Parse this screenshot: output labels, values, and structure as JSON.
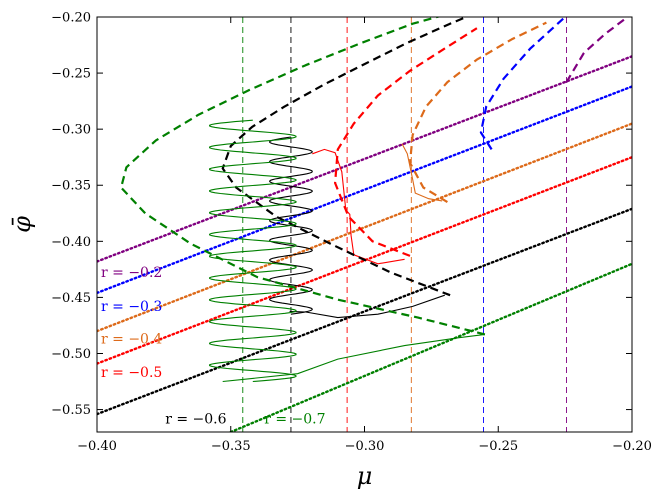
{
  "chart_data": {
    "type": "line",
    "title": "",
    "xlabel": "μ",
    "ylabel": "φ̄",
    "xlim": [
      -0.4,
      -0.2
    ],
    "ylim": [
      -0.57,
      -0.2
    ],
    "x_ticks": [
      -0.4,
      -0.35,
      -0.3,
      -0.25,
      -0.2
    ],
    "x_tick_labels": [
      "−0.40",
      "−0.35",
      "−0.30",
      "−0.25",
      "−0.20"
    ],
    "y_ticks": [
      -0.2,
      -0.25,
      -0.3,
      -0.35,
      -0.4,
      -0.45,
      -0.5,
      -0.55
    ],
    "y_tick_labels": [
      "−0.20",
      "−0.25",
      "−0.30",
      "−0.35",
      "−0.40",
      "−0.45",
      "−0.50",
      "−0.55"
    ],
    "grid": false,
    "series": [
      {
        "name": "r = −0.2",
        "color": "#800080",
        "dotted_line": [
          [
            -0.4,
            -0.418
          ],
          [
            -0.2,
            -0.235
          ]
        ],
        "vertical_line_x": -0.2245,
        "branch": [
          [
            -0.2245,
            -0.258
          ],
          [
            -0.218,
            -0.232
          ],
          [
            -0.21,
            -0.215
          ],
          [
            -0.2,
            -0.197
          ]
        ]
      },
      {
        "name": "r = −0.3",
        "color": "#0000ff",
        "dotted_line": [
          [
            -0.4,
            -0.446
          ],
          [
            -0.2,
            -0.262
          ]
        ],
        "vertical_line_x": -0.2555,
        "branch": [
          [
            -0.2525,
            -0.318
          ],
          [
            -0.2565,
            -0.303
          ],
          [
            -0.2545,
            -0.28
          ],
          [
            -0.248,
            -0.255
          ],
          [
            -0.238,
            -0.228
          ],
          [
            -0.225,
            -0.2
          ]
        ]
      },
      {
        "name": "r = −0.4",
        "color": "#dd6a1a",
        "dotted_line": [
          [
            -0.4,
            -0.48
          ],
          [
            -0.2,
            -0.295
          ]
        ],
        "vertical_line_x": -0.2825,
        "branch": [
          [
            -0.269,
            -0.365
          ],
          [
            -0.278,
            -0.352
          ],
          [
            -0.283,
            -0.33
          ],
          [
            -0.282,
            -0.305
          ],
          [
            -0.277,
            -0.28
          ],
          [
            -0.269,
            -0.258
          ],
          [
            -0.258,
            -0.238
          ],
          [
            -0.245,
            -0.22
          ],
          [
            -0.232,
            -0.205
          ]
        ],
        "trajectory": [
          [
            -0.286,
            -0.313
          ],
          [
            -0.284,
            -0.322
          ],
          [
            -0.282,
            -0.345
          ],
          [
            -0.281,
            -0.357
          ],
          [
            -0.276,
            -0.362
          ],
          [
            -0.271,
            -0.364
          ]
        ]
      },
      {
        "name": "r = −0.5",
        "color": "#ff0000",
        "dotted_line": [
          [
            -0.4,
            -0.509
          ],
          [
            -0.2,
            -0.325
          ]
        ],
        "vertical_line_x": -0.3065,
        "branch": [
          [
            -0.283,
            -0.413
          ],
          [
            -0.297,
            -0.4
          ],
          [
            -0.306,
            -0.378
          ],
          [
            -0.311,
            -0.348
          ],
          [
            -0.31,
            -0.318
          ],
          [
            -0.304,
            -0.295
          ],
          [
            -0.295,
            -0.27
          ],
          [
            -0.283,
            -0.248
          ],
          [
            -0.27,
            -0.228
          ],
          [
            -0.258,
            -0.21
          ]
        ],
        "trajectory": [
          [
            -0.3195,
            -0.322
          ],
          [
            -0.315,
            -0.318
          ],
          [
            -0.311,
            -0.321
          ],
          [
            -0.3085,
            -0.338
          ],
          [
            -0.3075,
            -0.36
          ],
          [
            -0.307,
            -0.372
          ],
          [
            -0.3055,
            -0.376
          ],
          [
            -0.305,
            -0.395
          ],
          [
            -0.304,
            -0.412
          ],
          [
            -0.295,
            -0.42
          ],
          [
            -0.285,
            -0.416
          ]
        ]
      },
      {
        "name": "r = −0.6",
        "color": "#000000",
        "dotted_line": [
          [
            -0.4,
            -0.554
          ],
          [
            -0.2,
            -0.371
          ]
        ],
        "vertical_line_x": -0.3275,
        "branch": [
          [
            -0.268,
            -0.448
          ],
          [
            -0.29,
            -0.428
          ],
          [
            -0.312,
            -0.403
          ],
          [
            -0.333,
            -0.378
          ],
          [
            -0.348,
            -0.352
          ],
          [
            -0.353,
            -0.335
          ],
          [
            -0.35,
            -0.315
          ],
          [
            -0.342,
            -0.298
          ],
          [
            -0.33,
            -0.28
          ],
          [
            -0.315,
            -0.26
          ],
          [
            -0.3,
            -0.242
          ],
          [
            -0.284,
            -0.223
          ],
          [
            -0.268,
            -0.206
          ],
          [
            -0.26,
            -0.198
          ]
        ],
        "trajectory_envelope": {
          "x_left": -0.3355,
          "x_right": -0.3195,
          "y_top": -0.307,
          "y_bottom": -0.465,
          "oscillations": 9
        },
        "trajectory_tail": [
          [
            -0.328,
            -0.4625
          ],
          [
            -0.322,
            -0.463
          ],
          [
            -0.31,
            -0.468
          ],
          [
            -0.295,
            -0.465
          ],
          [
            -0.282,
            -0.458
          ],
          [
            -0.27,
            -0.448
          ]
        ]
      },
      {
        "name": "r = −0.7",
        "color": "#008000",
        "dotted_line": [
          [
            -0.35,
            -0.57
          ],
          [
            -0.2,
            -0.42
          ]
        ],
        "vertical_line_x": -0.3455,
        "branch": [
          [
            -0.255,
            -0.483
          ],
          [
            -0.28,
            -0.468
          ],
          [
            -0.31,
            -0.452
          ],
          [
            -0.34,
            -0.432
          ],
          [
            -0.365,
            -0.402
          ],
          [
            -0.382,
            -0.375
          ],
          [
            -0.391,
            -0.352
          ],
          [
            -0.389,
            -0.334
          ],
          [
            -0.378,
            -0.31
          ],
          [
            -0.362,
            -0.287
          ],
          [
            -0.343,
            -0.265
          ],
          [
            -0.322,
            -0.243
          ],
          [
            -0.301,
            -0.223
          ],
          [
            -0.282,
            -0.206
          ],
          [
            -0.27,
            -0.198
          ]
        ],
        "trajectory_envelope": {
          "x_left": -0.358,
          "x_right": -0.3255,
          "y_top": -0.292,
          "y_bottom": -0.525,
          "oscillations": 12
        },
        "trajectory_tail": [
          [
            -0.353,
            -0.525
          ],
          [
            -0.325,
            -0.518
          ],
          [
            -0.31,
            -0.505
          ],
          [
            -0.285,
            -0.493
          ],
          [
            -0.265,
            -0.486
          ],
          [
            -0.255,
            -0.483
          ]
        ]
      }
    ],
    "annotations": [
      {
        "text": "r = −0.2",
        "color": "#800080",
        "at": [
          -0.3985,
          -0.432
        ]
      },
      {
        "text": "r = −0.3",
        "color": "#0000ff",
        "at": [
          -0.3985,
          -0.462
        ]
      },
      {
        "text": "r = −0.4",
        "color": "#dd6a1a",
        "at": [
          -0.3985,
          -0.491
        ]
      },
      {
        "text": "r = −0.5",
        "color": "#ff0000",
        "at": [
          -0.3985,
          -0.521
        ]
      },
      {
        "text": "r = −0.6",
        "color": "#000000",
        "at": [
          -0.3745,
          -0.5625
        ]
      },
      {
        "text": "r = −0.7",
        "color": "#008000",
        "at": [
          -0.3375,
          -0.5625
        ]
      }
    ]
  }
}
